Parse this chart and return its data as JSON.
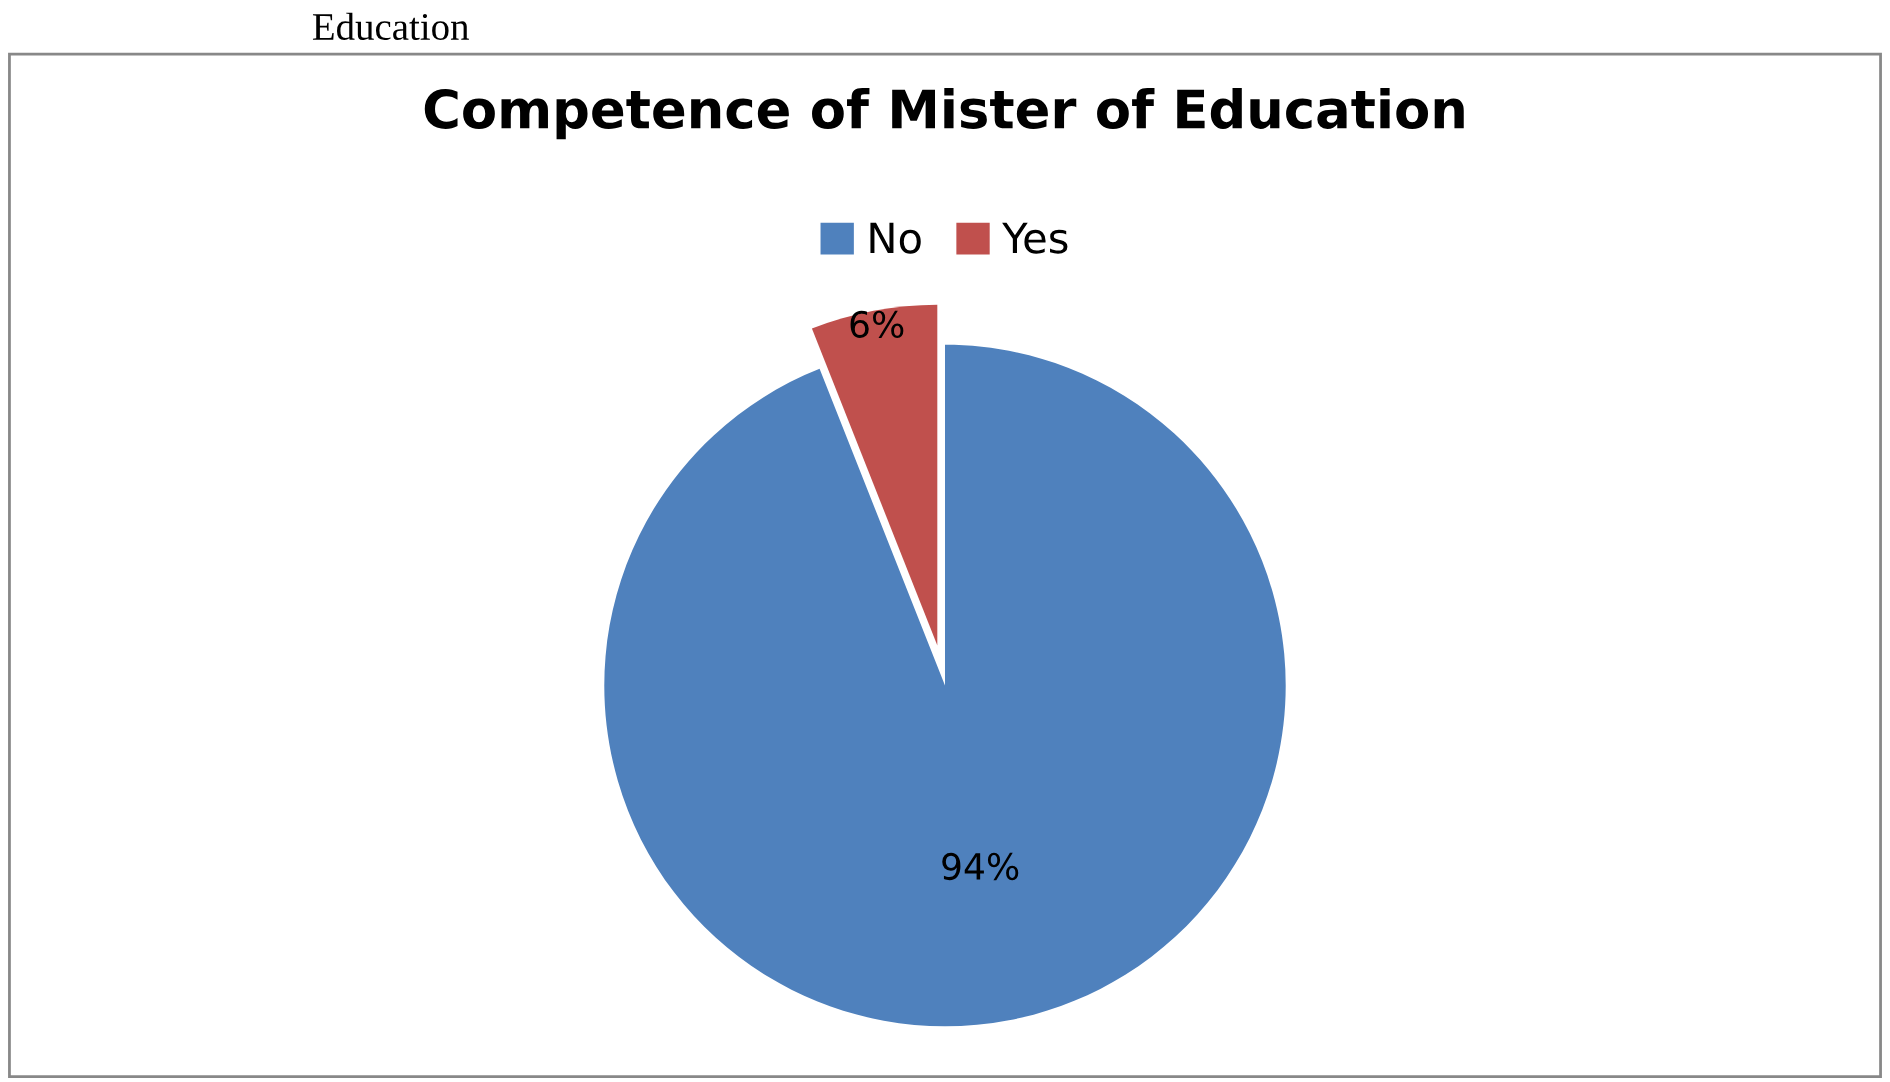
{
  "chart_data": {
    "type": "pie",
    "title": "Competence of Mister of Education",
    "categories": [
      "No",
      "Yes"
    ],
    "values": [
      94,
      6
    ],
    "colors": [
      "#4f81bd",
      "#c0504d"
    ],
    "value_labels": [
      "94%",
      "6%"
    ],
    "legend": "top",
    "annotations": [
      "Education"
    ]
  }
}
